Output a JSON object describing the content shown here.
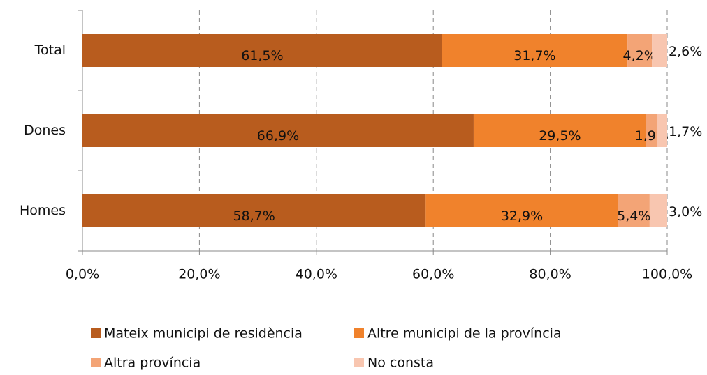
{
  "chart_data": {
    "type": "stacked-bar-horizontal",
    "categories": [
      "Total",
      "Dones",
      "Homes"
    ],
    "series": [
      {
        "name": "Mateix municipi de residència",
        "color": "#b85c1e",
        "values": [
          61.5,
          66.9,
          58.7
        ],
        "value_labels": [
          "61,5%",
          "66,9%",
          "58,7%"
        ]
      },
      {
        "name": "Altre municipi de la província",
        "color": "#f0822c",
        "values": [
          31.7,
          29.5,
          32.9
        ],
        "value_labels": [
          "31,7%",
          "29,5%",
          "32,9%"
        ]
      },
      {
        "name": "Altra província",
        "color": "#f3a476",
        "values": [
          4.2,
          1.9,
          5.4
        ],
        "value_labels": [
          "4,2%",
          "1,9%",
          "5,4%"
        ]
      },
      {
        "name": "No consta",
        "color": "#f8c6b0",
        "values": [
          2.6,
          1.7,
          3.0
        ],
        "value_labels": [
          "2,6%",
          "1,7%",
          "3,0%"
        ]
      }
    ],
    "xlim": [
      0,
      100
    ],
    "xticks": [
      {
        "value": 0,
        "label": "0,0%"
      },
      {
        "value": 20,
        "label": "20,0%"
      },
      {
        "value": 40,
        "label": "40,0%"
      },
      {
        "value": 60,
        "label": "60,0%"
      },
      {
        "value": 80,
        "label": "80,0%"
      },
      {
        "value": 100,
        "label": "100,0%"
      }
    ],
    "grid": true,
    "legend": "bottom"
  }
}
